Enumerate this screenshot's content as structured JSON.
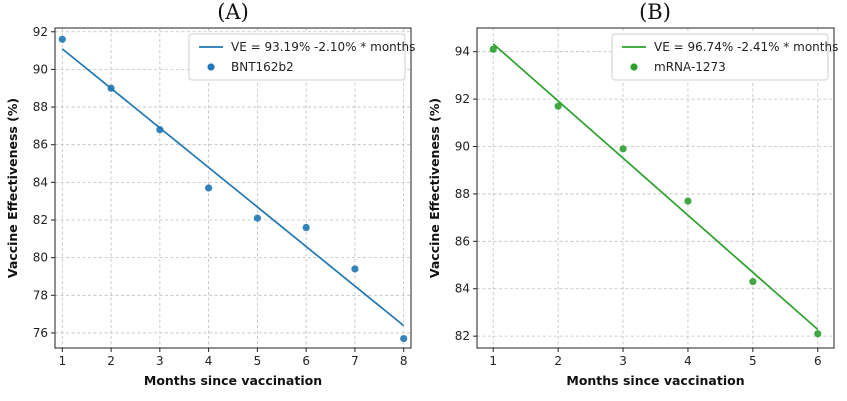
{
  "chart_data": [
    {
      "type": "scatter",
      "panel_label": "(A)",
      "xlabel": "Months since vaccination",
      "ylabel": "Vaccine Effectiveness (%)",
      "xlim": [
        0.85,
        8.15
      ],
      "ylim": [
        75.2,
        92.2
      ],
      "xticks": [
        1,
        2,
        3,
        4,
        5,
        6,
        7,
        8
      ],
      "yticks": [
        76,
        78,
        80,
        82,
        84,
        86,
        88,
        90,
        92
      ],
      "grid": true,
      "legend_position": "top-right",
      "color": "#1f77b4",
      "fit": {
        "label": "VE = 93.19% -2.10% * months",
        "intercept": 93.19,
        "slope": -2.1,
        "x_range": [
          1,
          8
        ]
      },
      "series": [
        {
          "name": "BNT162b2",
          "x": [
            1,
            2,
            3,
            4,
            5,
            6,
            7,
            8
          ],
          "y": [
            91.6,
            89.0,
            86.8,
            83.7,
            82.1,
            81.6,
            79.4,
            75.7
          ]
        }
      ]
    },
    {
      "type": "scatter",
      "panel_label": "(B)",
      "xlabel": "Months since vaccination",
      "ylabel": "Vaccine Effectiveness (%)",
      "xlim": [
        0.75,
        6.25
      ],
      "ylim": [
        81.5,
        95.0
      ],
      "xticks": [
        1,
        2,
        3,
        4,
        5,
        6
      ],
      "yticks": [
        82,
        84,
        86,
        88,
        90,
        92,
        94
      ],
      "grid": true,
      "legend_position": "top-right",
      "color": "#2ca02c",
      "fit": {
        "label": "VE = 96.74% -2.41% * months",
        "intercept": 96.74,
        "slope": -2.41,
        "x_range": [
          1,
          6
        ]
      },
      "series": [
        {
          "name": "mRNA-1273",
          "x": [
            1,
            2,
            3,
            4,
            5,
            6
          ],
          "y": [
            94.1,
            91.7,
            89.9,
            87.7,
            84.3,
            82.1
          ]
        }
      ]
    }
  ]
}
